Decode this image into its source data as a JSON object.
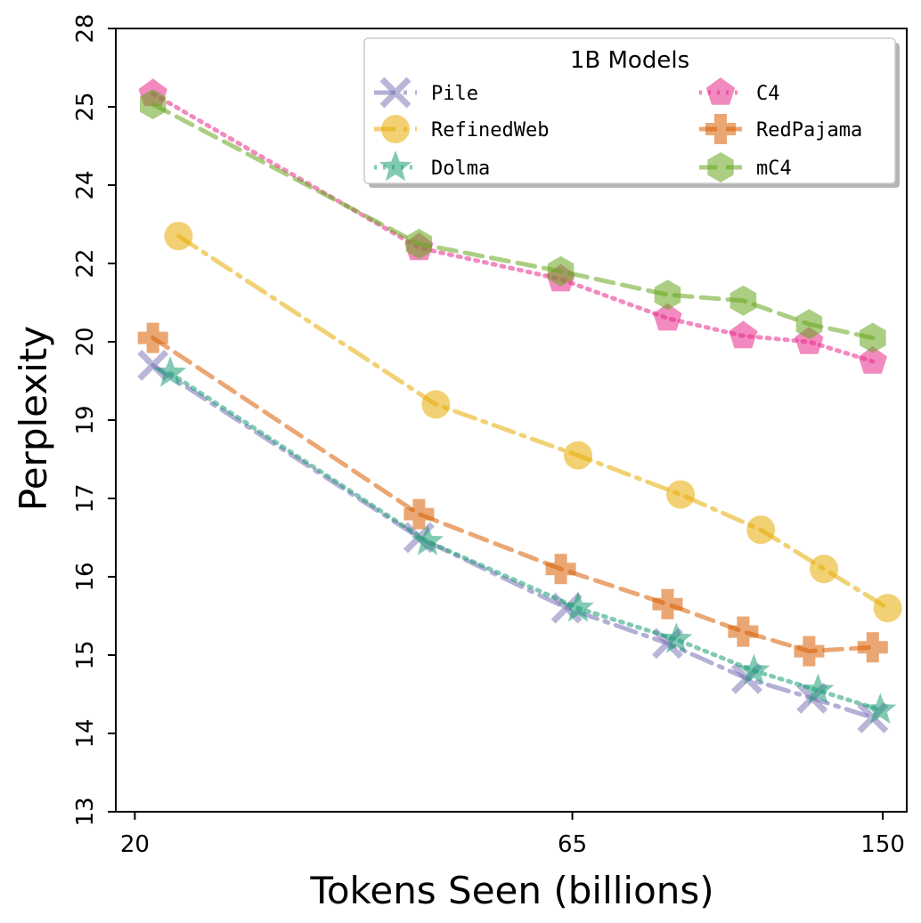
{
  "chart_data": {
    "type": "line",
    "title": "",
    "xlabel": "Tokens Seen (billions)",
    "ylabel": "Perplexity",
    "x_scale": "log",
    "xlim": [
      19,
      160
    ],
    "x_ticks": [
      20,
      65,
      150
    ],
    "y_ticks": [
      13,
      14,
      15,
      16,
      17,
      19,
      20,
      22,
      24,
      25,
      28
    ],
    "legend": {
      "title": "1B Models",
      "placement": "top-right",
      "columns": 2
    },
    "series": [
      {
        "name": "Pile",
        "color": "#7570b3",
        "marker": "x",
        "dash": "dashdot",
        "x": [
          21,
          43,
          64,
          84,
          104,
          124,
          146
        ],
        "y": [
          19.7,
          16.5,
          15.6,
          15.15,
          14.7,
          14.45,
          14.2
        ]
      },
      {
        "name": "RefinedWeb",
        "color": "#e6ab02",
        "marker": "circle",
        "dash": "dashdot",
        "x": [
          22.5,
          45,
          66,
          87,
          108,
          128,
          152
        ],
        "y": [
          22.7,
          19.2,
          18.1,
          17.1,
          16.6,
          16.1,
          15.6
        ]
      },
      {
        "name": "Dolma",
        "color": "#1b9e77",
        "marker": "star",
        "dash": "dotted",
        "x": [
          22,
          44,
          66,
          86,
          106,
          126,
          149
        ],
        "y": [
          19.6,
          16.45,
          15.6,
          15.2,
          14.8,
          14.55,
          14.3
        ]
      },
      {
        "name": "C4",
        "color": "#e7298a",
        "marker": "pentagon",
        "dash": "dotted",
        "x": [
          21,
          43,
          63,
          84,
          103,
          123,
          146
        ],
        "y": [
          25.5,
          22.4,
          21.6,
          20.6,
          20.15,
          20.0,
          19.75
        ]
      },
      {
        "name": "RedPajama",
        "color": "#d95f02",
        "marker": "plus",
        "dash": "dashed",
        "x": [
          21,
          43,
          63,
          84,
          103,
          123,
          146
        ],
        "y": [
          20.1,
          16.8,
          16.1,
          15.65,
          15.3,
          15.05,
          15.1
        ]
      },
      {
        "name": "mC4",
        "color": "#66a61e",
        "marker": "hexagon",
        "dash": "dashed",
        "x": [
          21,
          43,
          63,
          84,
          103,
          123,
          146
        ],
        "y": [
          25.1,
          22.5,
          21.8,
          21.2,
          21.05,
          20.45,
          20.1
        ]
      }
    ]
  }
}
